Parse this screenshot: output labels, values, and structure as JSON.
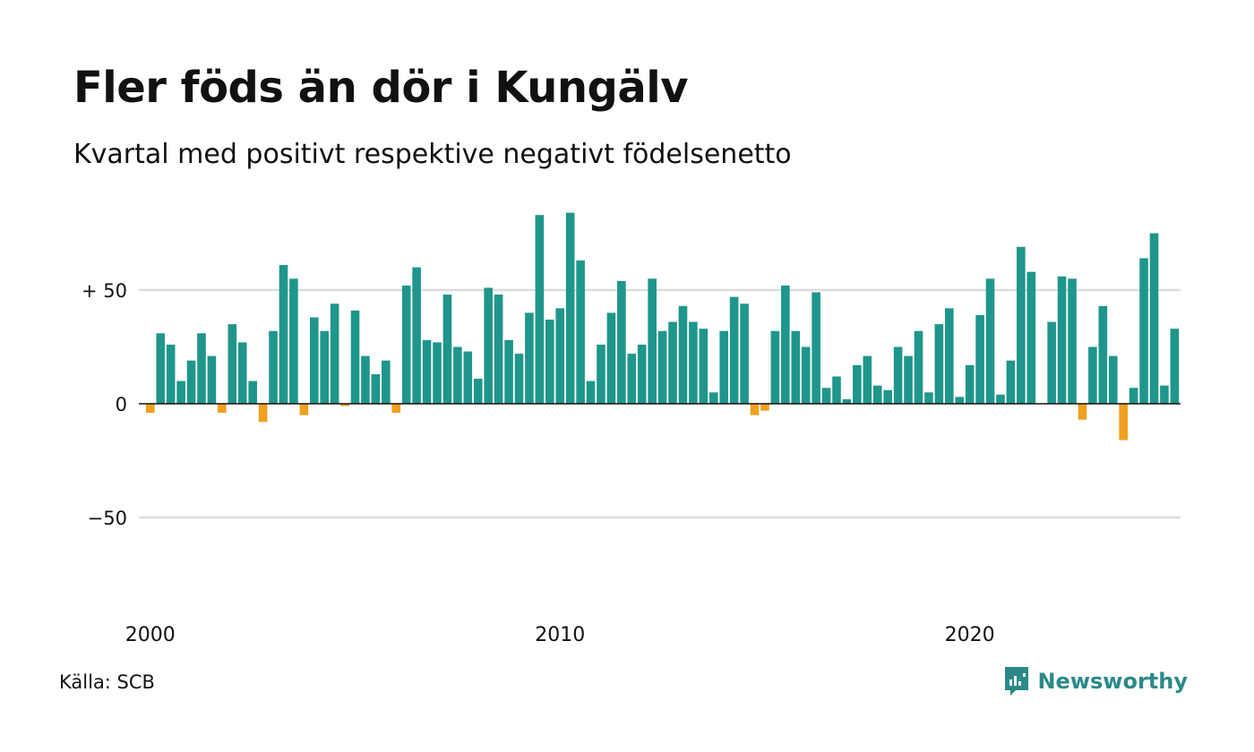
{
  "header": {
    "title": "Fler föds än dör i Kungälv",
    "subtitle": "Kvartal med positivt respektive negativt födelsenetto"
  },
  "footer": {
    "source": "Källa: SCB",
    "brand": "Newsworthy"
  },
  "colors": {
    "positive": "#1f968b",
    "negative": "#f0a01f",
    "grid": "#dddddd",
    "brand": "#2a8a87"
  },
  "chart_data": {
    "type": "bar",
    "x_start": "2000 Q1",
    "x_ticks": [
      "2000",
      "2010",
      "2020"
    ],
    "y_ticks": [
      {
        "value": 50,
        "label": "+ 50"
      },
      {
        "value": 0,
        "label": "0"
      },
      {
        "value": -50,
        "label": "−50"
      }
    ],
    "ylim": [
      -80,
      90
    ],
    "grid": true,
    "values": [
      -4,
      31,
      26,
      10,
      19,
      31,
      21,
      -4,
      35,
      27,
      10,
      -8,
      32,
      61,
      55,
      -5,
      38,
      32,
      44,
      -1,
      41,
      21,
      13,
      19,
      -4,
      52,
      60,
      28,
      27,
      48,
      25,
      23,
      11,
      51,
      48,
      28,
      22,
      40,
      83,
      37,
      42,
      84,
      63,
      10,
      26,
      40,
      54,
      22,
      26,
      55,
      32,
      36,
      43,
      36,
      33,
      5,
      32,
      47,
      44,
      -5,
      -3,
      32,
      52,
      32,
      25,
      49,
      7,
      12,
      2,
      17,
      21,
      8,
      6,
      25,
      21,
      32,
      5,
      35,
      42,
      3,
      17,
      39,
      55,
      4,
      19,
      69,
      58,
      0,
      36,
      56,
      55,
      -7,
      25,
      43,
      21,
      -16,
      7,
      64,
      75,
      8,
      33
    ]
  }
}
